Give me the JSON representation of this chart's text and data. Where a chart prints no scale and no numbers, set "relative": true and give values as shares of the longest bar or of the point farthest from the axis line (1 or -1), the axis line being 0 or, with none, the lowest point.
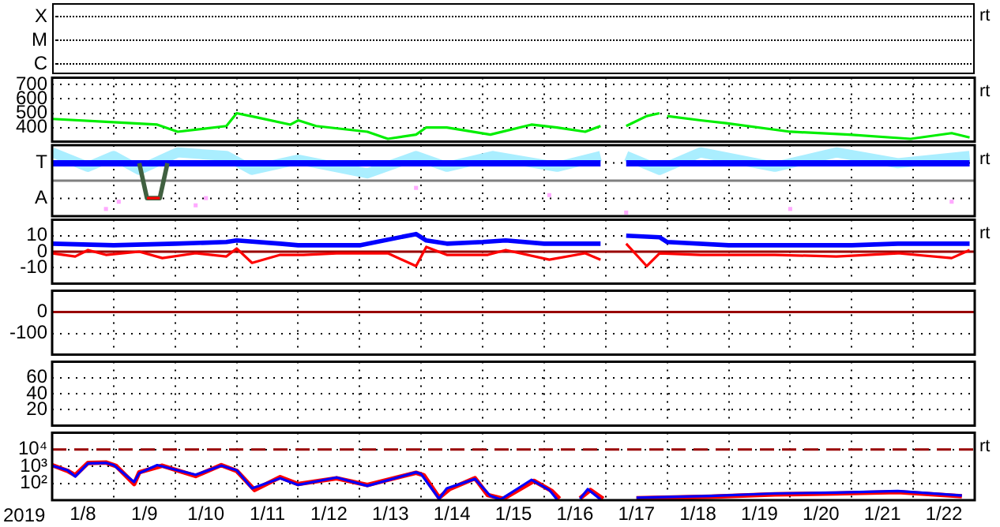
{
  "chart_data": [
    {
      "type": "other",
      "subtitle": "rt",
      "annotations": [
        "X",
        "M",
        "C"
      ]
    },
    {
      "type": "line",
      "subtitle": "rt",
      "x": [
        "2019-01-08T00:00",
        "2019-01-08T21:00",
        "2019-01-09T17:00",
        "2019-01-10T01:00",
        "2019-01-10T20:00",
        "2019-01-11T00:00",
        "2019-01-11T08:00",
        "2019-01-11T21:00",
        "2019-01-12T00:00",
        "2019-01-12T07:00",
        "2019-01-13T03:00",
        "2019-01-13T11:00",
        "2019-01-13T22:00",
        "2019-01-14T02:00",
        "2019-01-14T10:00",
        "2019-01-15T03:00",
        "2019-01-15T19:00",
        "2019-01-16T05:00",
        "2019-01-16T16:00",
        "2019-01-16T22:00",
        "2019-01-17T00:00",
        "2019-01-17T08:00",
        "2019-01-17T16:00",
        "2019-01-17T21:00",
        "2019-01-17T22:00",
        "2019-01-18T00:00",
        "2019-01-18T13:00",
        "2019-01-18T23:00",
        "2019-01-20T00:00",
        "2019-01-20T23:00",
        "2019-01-21T23:00",
        "2019-01-22T15:00",
        "2019-01-22T22:00"
      ],
      "series": [
        {
          "color": "#00ee00",
          "values": [
            460,
            440,
            420,
            370,
            410,
            500,
            470,
            420,
            450,
            410,
            370,
            320,
            350,
            400,
            400,
            350,
            420,
            400,
            370,
            410,
            null,
            410,
            480,
            500,
            null,
            480,
            450,
            430,
            370,
            350,
            320,
            360,
            330
          ]
        }
      ],
      "xlim": [
        "2019-01-08T00:00",
        "2019-01-23T00:00"
      ],
      "xticks": [
        {
          "value": "2019-01-09T00:00",
          "label": null
        },
        {
          "value": "2019-01-10T00:00",
          "label": null
        },
        {
          "value": "2019-01-11T00:00",
          "label": null
        },
        {
          "value": "2019-01-12T00:00",
          "label": null
        },
        {
          "value": "2019-01-13T00:00",
          "label": null
        },
        {
          "value": "2019-01-14T00:00",
          "label": null
        },
        {
          "value": "2019-01-15T00:00",
          "label": null
        },
        {
          "value": "2019-01-16T00:00",
          "label": null
        },
        {
          "value": "2019-01-17T00:00",
          "label": null
        },
        {
          "value": "2019-01-18T00:00",
          "label": null
        },
        {
          "value": "2019-01-19T00:00",
          "label": null
        },
        {
          "value": "2019-01-20T00:00",
          "label": null
        },
        {
          "value": "2019-01-21T00:00",
          "label": null
        },
        {
          "value": "2019-01-22T00:00",
          "label": null
        }
      ],
      "ylim": [
        300,
        750
      ],
      "yticks": [
        400,
        500,
        600,
        700
      ],
      "grid": true,
      "tick_labels": "y"
    },
    {
      "type": "line",
      "subtitle": "rt",
      "relative": true,
      "annotations": [
        "T",
        "A"
      ],
      "series": [
        {
          "color": "#aaeeff",
          "x": [
            "2019-01-08T00:00",
            "2019-01-08T14:00",
            "2019-01-09T00:00",
            "2019-01-09T10:00",
            "2019-01-10T01:00",
            "2019-01-10T20:00",
            "2019-01-11T06:00",
            "2019-01-12T00:00",
            "2019-01-13T03:00",
            "2019-01-13T22:00",
            "2019-01-14T10:00",
            "2019-01-15T04:00",
            "2019-01-16T05:00",
            "2019-01-16T22:00",
            "2019-01-17T00:00",
            "2019-01-17T08:00",
            "2019-01-17T21:00",
            "2019-01-18T13:00",
            "2019-01-19T18:00",
            "2019-01-20T18:00",
            "2019-01-21T18:00",
            "2019-01-22T22:00"
          ],
          "values": [
            1.0,
            0.76,
            0.94,
            0.71,
            1.0,
            0.94,
            0.71,
            0.88,
            0.65,
            0.94,
            0.76,
            0.94,
            0.76,
            0.94,
            null,
            0.94,
            0.71,
            1.0,
            0.76,
            1.0,
            0.82,
            0.94
          ]
        },
        {
          "type": "scatter",
          "color": "#ffaaff",
          "x": [
            "2019-01-08T21:00",
            "2019-01-09T02:00",
            "2019-01-10T08:00",
            "2019-01-10T12:00",
            "2019-01-13T22:00",
            "2019-01-16T02:00",
            "2019-01-17T08:00",
            "2019-01-20T00:00",
            "2019-01-22T15:00"
          ],
          "values": [
            0.06,
            0.18,
            0.12,
            0.24,
            0.41,
            0.29,
            0,
            0.06,
            0.18
          ]
        },
        {
          "color": "#0000ff",
          "x": [
            "2019-01-08T00:00",
            "2019-01-16T22:00",
            "2019-01-17T00:00",
            "2019-01-17T08:00",
            "2019-01-22T22:00"
          ],
          "values": [
            0.82,
            0.82,
            null,
            0.82,
            0.82
          ]
        },
        {
          "color": "#406040",
          "x": [
            "2019-01-09T10:00",
            "2019-01-09T13:00",
            "2019-01-09T18:00",
            "2019-01-09T21:00"
          ],
          "values": [
            0.82,
            0.24,
            0.24,
            0.82
          ]
        },
        {
          "color": "#ff0000",
          "x": [
            "2019-01-09T13:00",
            "2019-01-09T18:00"
          ],
          "values": [
            0.24,
            0.24
          ]
        }
      ],
      "xlim": [
        "2019-01-08T00:00",
        "2019-01-23T00:00"
      ],
      "xticks": [
        {
          "value": "2019-01-09T00:00",
          "label": null
        },
        {
          "value": "2019-01-10T00:00",
          "label": null
        },
        {
          "value": "2019-01-11T00:00",
          "label": null
        },
        {
          "value": "2019-01-12T00:00",
          "label": null
        },
        {
          "value": "2019-01-13T00:00",
          "label": null
        },
        {
          "value": "2019-01-14T00:00",
          "label": null
        },
        {
          "value": "2019-01-15T00:00",
          "label": null
        },
        {
          "value": "2019-01-16T00:00",
          "label": null
        },
        {
          "value": "2019-01-17T00:00",
          "label": null
        },
        {
          "value": "2019-01-18T00:00",
          "label": null
        },
        {
          "value": "2019-01-19T00:00",
          "label": null
        },
        {
          "value": "2019-01-20T00:00",
          "label": null
        },
        {
          "value": "2019-01-21T00:00",
          "label": null
        },
        {
          "value": "2019-01-22T00:00",
          "label": null
        }
      ],
      "ref_lines": [
        {
          "axis": "y",
          "value": 0.53,
          "color": "#808080"
        }
      ],
      "grid": true,
      "tick_labels": false
    },
    {
      "type": "line",
      "subtitle": "rt",
      "series": [
        {
          "color": "#0000ff",
          "x": [
            "2019-01-08T00:00",
            "2019-01-09T00:00",
            "2019-01-10T00:00",
            "2019-01-10T20:00",
            "2019-01-11T00:00",
            "2019-01-11T17:00",
            "2019-01-12T00:00",
            "2019-01-13T00:00",
            "2019-01-13T22:00",
            "2019-01-14T02:00",
            "2019-01-14T10:00",
            "2019-01-15T00:00",
            "2019-01-15T09:00",
            "2019-01-16T00:00",
            "2019-01-16T22:00",
            "2019-01-17T00:00",
            "2019-01-17T08:00",
            "2019-01-17T21:00",
            "2019-01-18T00:00",
            "2019-01-19T00:00",
            "2019-01-20T00:00",
            "2019-01-21T00:00",
            "2019-01-21T18:00",
            "2019-01-22T22:00"
          ],
          "values": [
            5,
            4,
            5,
            6,
            7,
            5,
            4,
            4,
            11,
            7,
            5,
            6,
            7,
            5,
            5,
            null,
            10,
            9,
            6,
            4,
            4,
            4,
            5,
            5
          ]
        },
        {
          "color": "#ff0000",
          "x": [
            "2019-01-08T00:00",
            "2019-01-08T09:00",
            "2019-01-08T14:00",
            "2019-01-08T21:00",
            "2019-01-09T10:00",
            "2019-01-09T19:00",
            "2019-01-10T08:00",
            "2019-01-10T20:00",
            "2019-01-11T00:00",
            "2019-01-11T06:00",
            "2019-01-11T17:00",
            "2019-01-12T02:00",
            "2019-01-12T15:00",
            "2019-01-13T11:00",
            "2019-01-13T22:00",
            "2019-01-14T02:00",
            "2019-01-14T10:00",
            "2019-01-15T02:00",
            "2019-01-15T09:00",
            "2019-01-16T02:00",
            "2019-01-16T16:00",
            "2019-01-16T22:00",
            "2019-01-17T00:00",
            "2019-01-17T08:00",
            "2019-01-17T16:00",
            "2019-01-17T21:00",
            "2019-01-18T13:00",
            "2019-01-19T18:00",
            "2019-01-20T18:00",
            "2019-01-21T18:00",
            "2019-01-22T15:00",
            "2019-01-22T22:00"
          ],
          "values": [
            -1,
            -3,
            1,
            -2,
            0,
            -4,
            -1,
            -3,
            2,
            -7,
            -2,
            -2,
            -1,
            -1,
            -9,
            3,
            -2,
            -2,
            1,
            -5,
            -1,
            -5,
            null,
            5,
            -9,
            -1,
            -2,
            -2,
            -3,
            -1,
            -4,
            1
          ]
        }
      ],
      "xlim": [
        "2019-01-08T00:00",
        "2019-01-23T00:00"
      ],
      "xticks": [
        {
          "value": "2019-01-09T00:00",
          "label": null
        },
        {
          "value": "2019-01-10T00:00",
          "label": null
        },
        {
          "value": "2019-01-11T00:00",
          "label": null
        },
        {
          "value": "2019-01-12T00:00",
          "label": null
        },
        {
          "value": "2019-01-13T00:00",
          "label": null
        },
        {
          "value": "2019-01-14T00:00",
          "label": null
        },
        {
          "value": "2019-01-15T00:00",
          "label": null
        },
        {
          "value": "2019-01-16T00:00",
          "label": null
        },
        {
          "value": "2019-01-17T00:00",
          "label": null
        },
        {
          "value": "2019-01-18T00:00",
          "label": null
        },
        {
          "value": "2019-01-19T00:00",
          "label": null
        },
        {
          "value": "2019-01-20T00:00",
          "label": null
        },
        {
          "value": "2019-01-21T00:00",
          "label": null
        },
        {
          "value": "2019-01-22T00:00",
          "label": null
        }
      ],
      "ylim": [
        -20,
        20
      ],
      "yticks": [
        -10,
        0,
        10
      ],
      "ref_lines": [
        {
          "axis": "y",
          "value": 0,
          "color": "#990000"
        }
      ],
      "grid": true,
      "tick_labels": "y"
    },
    {
      "type": "line",
      "xlim": [
        "2019-01-08T00:00",
        "2019-01-23T00:00"
      ],
      "xticks": [
        {
          "value": "2019-01-09T00:00",
          "label": null
        },
        {
          "value": "2019-01-10T00:00",
          "label": null
        },
        {
          "value": "2019-01-11T00:00",
          "label": null
        },
        {
          "value": "2019-01-12T00:00",
          "label": null
        },
        {
          "value": "2019-01-13T00:00",
          "label": null
        },
        {
          "value": "2019-01-14T00:00",
          "label": null
        },
        {
          "value": "2019-01-15T00:00",
          "label": null
        },
        {
          "value": "2019-01-16T00:00",
          "label": null
        },
        {
          "value": "2019-01-17T00:00",
          "label": null
        },
        {
          "value": "2019-01-18T00:00",
          "label": null
        },
        {
          "value": "2019-01-19T00:00",
          "label": null
        },
        {
          "value": "2019-01-20T00:00",
          "label": null
        },
        {
          "value": "2019-01-21T00:00",
          "label": null
        },
        {
          "value": "2019-01-22T00:00",
          "label": null
        }
      ],
      "ylim": [
        -200,
        100
      ],
      "yticks": [
        -100,
        0
      ],
      "ref_lines": [
        {
          "axis": "y",
          "value": 0,
          "color": "#990000"
        }
      ],
      "grid": true,
      "tick_labels": "y"
    },
    {
      "type": "line",
      "xlim": [
        "2019-01-08T00:00",
        "2019-01-23T00:00"
      ],
      "xticks": [
        {
          "value": "2019-01-09T00:00",
          "label": null
        },
        {
          "value": "2019-01-10T00:00",
          "label": null
        },
        {
          "value": "2019-01-11T00:00",
          "label": null
        },
        {
          "value": "2019-01-12T00:00",
          "label": null
        },
        {
          "value": "2019-01-13T00:00",
          "label": null
        },
        {
          "value": "2019-01-14T00:00",
          "label": null
        },
        {
          "value": "2019-01-15T00:00",
          "label": null
        },
        {
          "value": "2019-01-16T00:00",
          "label": null
        },
        {
          "value": "2019-01-17T00:00",
          "label": null
        },
        {
          "value": "2019-01-18T00:00",
          "label": null
        },
        {
          "value": "2019-01-19T00:00",
          "label": null
        },
        {
          "value": "2019-01-20T00:00",
          "label": null
        },
        {
          "value": "2019-01-21T00:00",
          "label": null
        },
        {
          "value": "2019-01-22T00:00",
          "label": null
        }
      ],
      "ylim": [
        0,
        80
      ],
      "yticks": [
        20,
        40,
        60
      ],
      "grid": true,
      "tick_labels": "y"
    },
    {
      "type": "line",
      "subtitle": "rt",
      "xlabel": "2019",
      "series": [
        {
          "color": "#ff0000",
          "x": [
            "2019-01-08T00:00",
            "2019-01-08T06:00",
            "2019-01-08T09:00",
            "2019-01-08T14:00",
            "2019-01-08T21:00",
            "2019-01-09T01:00",
            "2019-01-09T08:00",
            "2019-01-09T10:00",
            "2019-01-09T19:00",
            "2019-01-10T08:00",
            "2019-01-10T18:00",
            "2019-01-11T00:00",
            "2019-01-11T07:00",
            "2019-01-11T17:00",
            "2019-01-12T00:00",
            "2019-01-12T15:00",
            "2019-01-13T03:00",
            "2019-01-13T22:00",
            "2019-01-14T01:00",
            "2019-01-14T07:00",
            "2019-01-14T11:00",
            "2019-01-14T21:00",
            "2019-01-15T02:00",
            "2019-01-15T08:00",
            "2019-01-15T20:00",
            "2019-01-16T03:00",
            "2019-01-16T06:00",
            "2019-01-16T10:00",
            "2019-01-16T14:00",
            "2019-01-16T18:00",
            "2019-01-16T23:00",
            "2019-01-17T00:00",
            "2019-01-17T12:00",
            "2019-01-18T17:00",
            "2019-01-19T18:00",
            "2019-01-20T18:00",
            "2019-01-21T18:00",
            "2019-01-22T19:00"
          ],
          "values": [
            1200,
            550,
            300,
            1600,
            1700,
            1050,
            90,
            450,
            1100,
            270,
            1200,
            550,
            40,
            230,
            90,
            200,
            80,
            420,
            300,
            14,
            45,
            200,
            20,
            12,
            140,
            35,
            12,
            null,
            13,
            40,
            12,
            null,
            13,
            16,
            22,
            25,
            30,
            17
          ]
        },
        {
          "color": "#0000ff",
          "x": [
            "2019-01-08T00:00",
            "2019-01-08T06:00",
            "2019-01-08T09:00",
            "2019-01-08T14:00",
            "2019-01-08T21:00",
            "2019-01-09T00:00",
            "2019-01-09T08:00",
            "2019-01-09T10:00",
            "2019-01-09T17:00",
            "2019-01-10T08:00",
            "2019-01-10T18:00",
            "2019-01-11T00:00",
            "2019-01-11T06:00",
            "2019-01-11T17:00",
            "2019-01-12T00:00",
            "2019-01-12T15:00",
            "2019-01-13T03:00",
            "2019-01-13T22:00",
            "2019-01-14T00:00",
            "2019-01-14T07:00",
            "2019-01-14T10:00",
            "2019-01-14T21:00",
            "2019-01-15T03:00",
            "2019-01-15T07:00",
            "2019-01-15T19:00",
            "2019-01-16T02:00",
            "2019-01-16T05:00",
            "2019-01-16T10:00",
            "2019-01-16T14:00",
            "2019-01-16T17:00",
            "2019-01-16T22:00",
            "2019-01-17T00:00",
            "2019-01-17T12:00",
            "2019-01-18T17:00",
            "2019-01-19T18:00",
            "2019-01-20T18:00",
            "2019-01-21T18:00",
            "2019-01-22T19:00"
          ],
          "values": [
            1100,
            600,
            250,
            1500,
            1600,
            1200,
            120,
            400,
            1200,
            320,
            1100,
            600,
            50,
            200,
            80,
            220,
            70,
            450,
            350,
            12,
            50,
            180,
            18,
            11,
            160,
            40,
            11,
            null,
            12,
            45,
            11,
            null,
            14,
            18,
            25,
            28,
            35,
            19
          ]
        }
      ],
      "xlim": [
        "2019-01-08T00:00",
        "2019-01-23T00:00"
      ],
      "xticks": [
        {
          "value": "2019-01-08T12:00",
          "label": "1/8"
        },
        {
          "value": "2019-01-09T00:00",
          "label": null
        },
        {
          "value": "2019-01-09T12:00",
          "label": "1/9"
        },
        {
          "value": "2019-01-10T00:00",
          "label": null
        },
        {
          "value": "2019-01-10T12:00",
          "label": "1/10"
        },
        {
          "value": "2019-01-11T00:00",
          "label": null
        },
        {
          "value": "2019-01-11T12:00",
          "label": "1/11"
        },
        {
          "value": "2019-01-12T00:00",
          "label": null
        },
        {
          "value": "2019-01-12T12:00",
          "label": "1/12"
        },
        {
          "value": "2019-01-13T00:00",
          "label": null
        },
        {
          "value": "2019-01-13T12:00",
          "label": "1/13"
        },
        {
          "value": "2019-01-14T00:00",
          "label": null
        },
        {
          "value": "2019-01-14T12:00",
          "label": "1/14"
        },
        {
          "value": "2019-01-15T00:00",
          "label": null
        },
        {
          "value": "2019-01-15T12:00",
          "label": "1/15"
        },
        {
          "value": "2019-01-16T00:00",
          "label": null
        },
        {
          "value": "2019-01-16T12:00",
          "label": "1/16"
        },
        {
          "value": "2019-01-17T00:00",
          "label": null
        },
        {
          "value": "2019-01-17T12:00",
          "label": "1/17"
        },
        {
          "value": "2019-01-18T00:00",
          "label": null
        },
        {
          "value": "2019-01-18T12:00",
          "label": "1/18"
        },
        {
          "value": "2019-01-19T00:00",
          "label": null
        },
        {
          "value": "2019-01-19T12:00",
          "label": "1/19"
        },
        {
          "value": "2019-01-20T00:00",
          "label": null
        },
        {
          "value": "2019-01-20T12:00",
          "label": "1/20"
        },
        {
          "value": "2019-01-21T00:00",
          "label": null
        },
        {
          "value": "2019-01-21T12:00",
          "label": "1/21"
        },
        {
          "value": "2019-01-22T00:00",
          "label": null
        },
        {
          "value": "2019-01-22T12:00",
          "label": "1/22"
        }
      ],
      "ylim": [
        10,
        100000
      ],
      "yticks": [
        {
          "value": 100,
          "label": "10²"
        },
        {
          "value": 1000,
          "label": "10³"
        },
        {
          "value": 10000,
          "label": "10⁴"
        }
      ],
      "log": true,
      "ref_lines": [
        {
          "axis": "y",
          "value": 10000,
          "color": "#990000",
          "line_style": "dashed"
        }
      ],
      "grid": true
    }
  ]
}
